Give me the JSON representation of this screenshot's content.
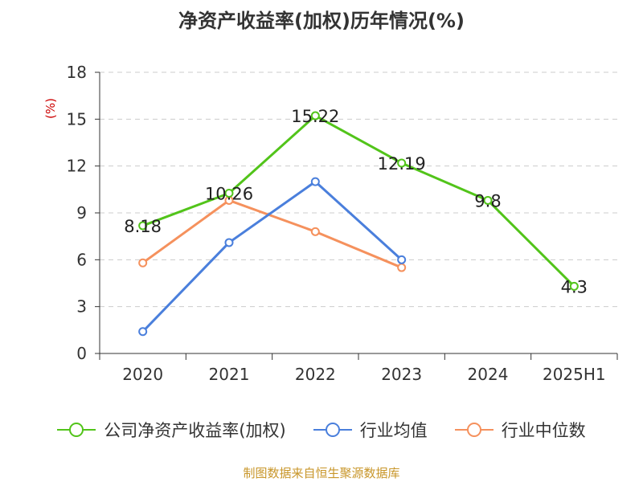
{
  "title": "净资产收益率(加权)历年情况(%)",
  "unit_label": "(%)",
  "source": "制图数据来自恒生聚源数据库",
  "chart_data": {
    "type": "line",
    "categories": [
      "2020",
      "2021",
      "2022",
      "2023",
      "2024",
      "2025H1"
    ],
    "ylim": [
      0,
      18
    ],
    "yticks": [
      0,
      3,
      6,
      9,
      12,
      15,
      18
    ],
    "grid": true,
    "legend_position": "bottom",
    "series": [
      {
        "name": "公司净资产收益率(加权)",
        "color": "#52c41a",
        "values": [
          8.18,
          10.26,
          15.22,
          12.19,
          9.8,
          4.3
        ],
        "labels": [
          "8.18",
          "10.26",
          "15.22",
          "12.19",
          "9.8",
          "4.3"
        ]
      },
      {
        "name": "行业均值",
        "color": "#4a7fdc",
        "values": [
          1.4,
          7.1,
          11.0,
          6.0,
          null,
          null
        ]
      },
      {
        "name": "行业中位数",
        "color": "#f5915d",
        "values": [
          5.8,
          9.8,
          7.8,
          5.5,
          null,
          null
        ]
      }
    ]
  }
}
